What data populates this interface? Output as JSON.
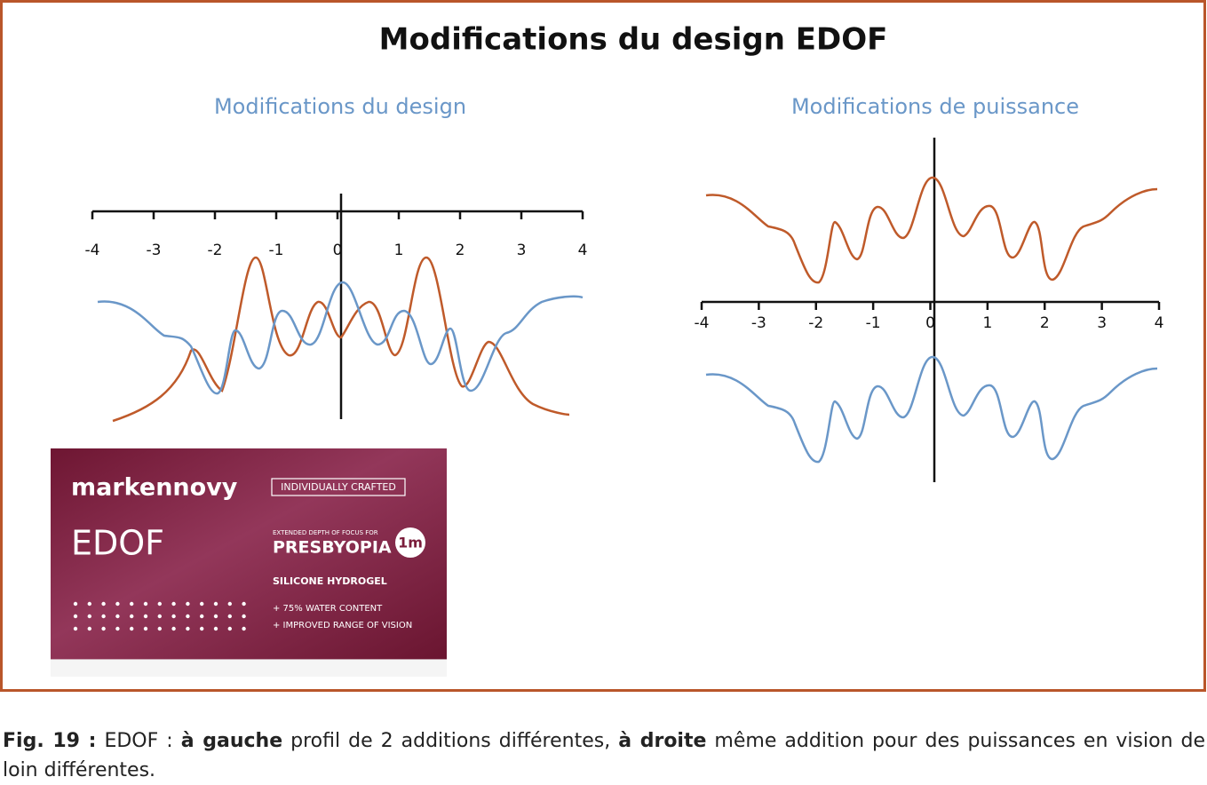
{
  "title": "Modifications du design EDOF",
  "left_panel": {
    "subtitle": "Modifications du design",
    "ticks": [
      "-4",
      "-3",
      "-2",
      "-1",
      "0",
      "1",
      "2",
      "3",
      "4"
    ]
  },
  "right_panel": {
    "subtitle": "Modifications de puissance",
    "ticks": [
      "-4",
      "-3",
      "-2",
      "-1",
      "0",
      "1",
      "2",
      "3",
      "4"
    ]
  },
  "product": {
    "brand": "markennovy",
    "tag": "INDIVIDUALLY CRAFTED",
    "name": "EDOF",
    "small": "EXTENDED DEPTH OF FOCUS FOR",
    "presbyopia": "PRESBYOPIA",
    "badge": "1m",
    "material": "SILICONE HYDROGEL",
    "feature1": "+ 75% WATER CONTENT",
    "feature2": "+ IMPROVED RANGE OF VISION"
  },
  "caption": {
    "label": "Fig. 19 :",
    "text1": " EDOF : ",
    "bold1": "à gauche",
    "text2": " profil de 2 additions différentes, ",
    "bold2": "à droite",
    "text3": " même addition pour des puissances en vision de loin différentes."
  }
}
